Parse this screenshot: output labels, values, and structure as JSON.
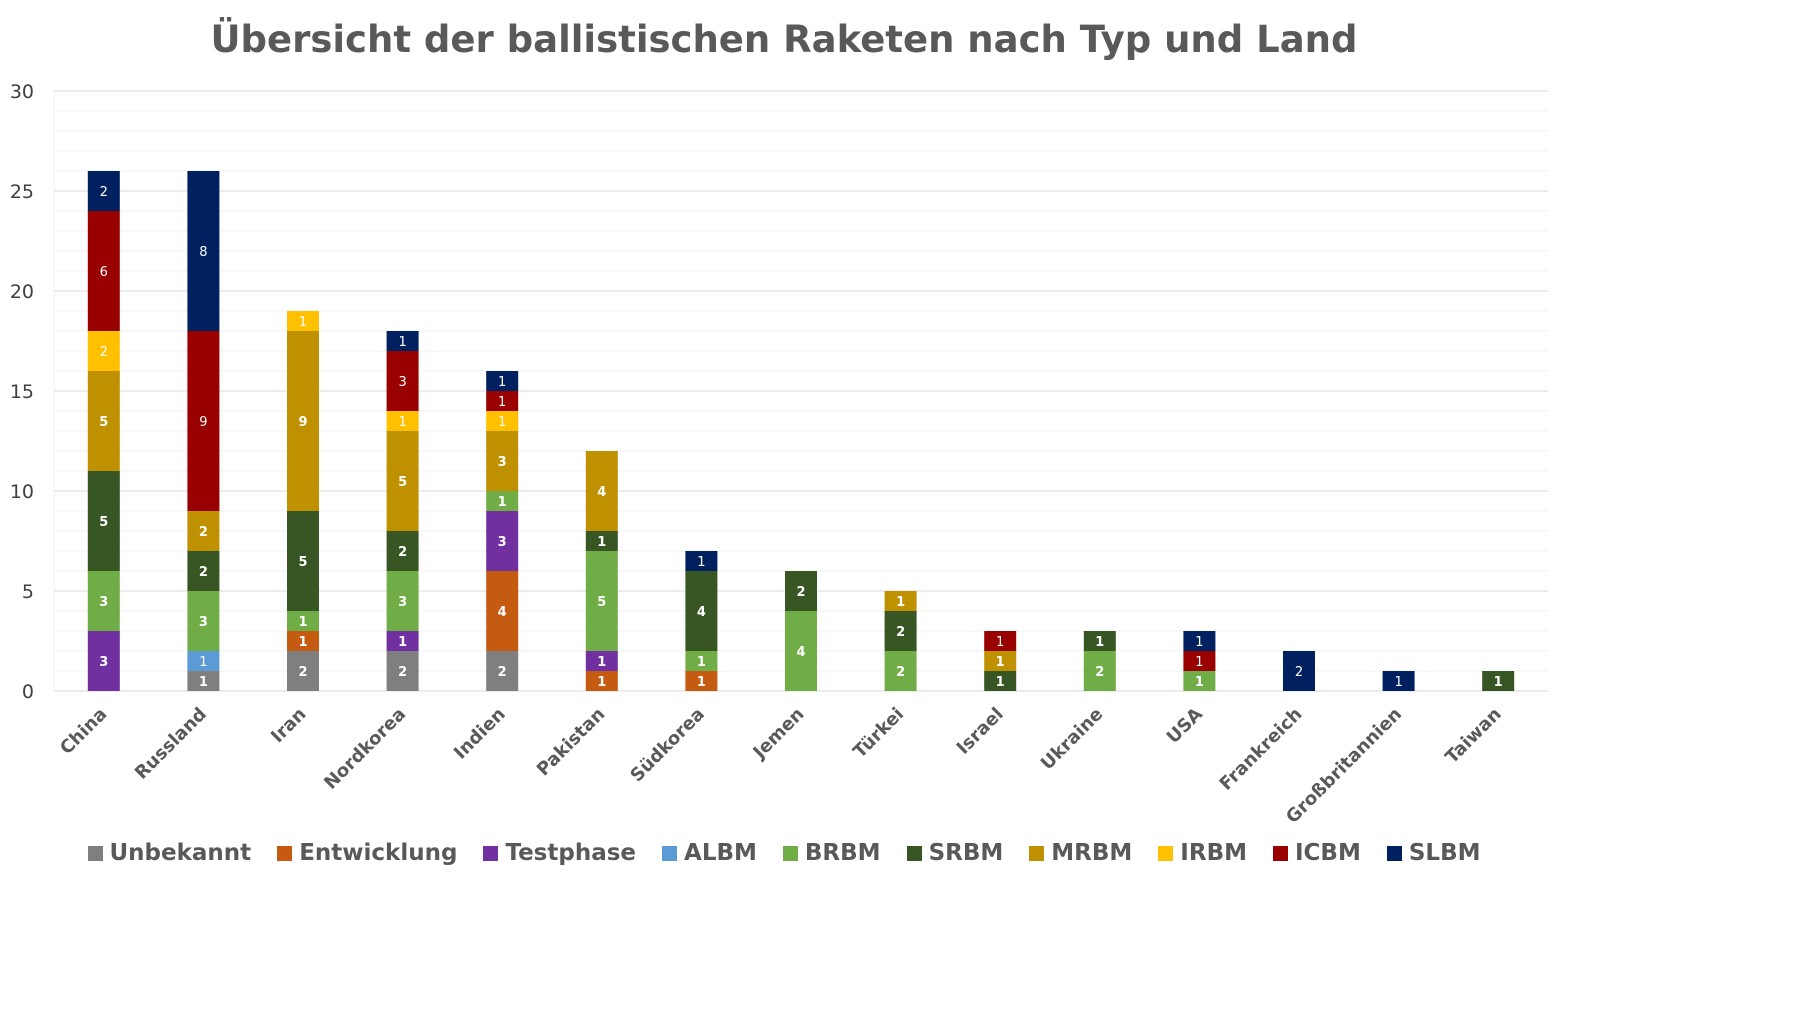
{
  "chart_data": {
    "type": "bar",
    "stacked": true,
    "title": "Übersicht der ballistischen Raketen nach Typ und Land",
    "xlabel": "",
    "ylabel": "",
    "ylim": [
      0,
      30
    ],
    "yticks": [
      "0",
      "5",
      "10",
      "15",
      "20",
      "25",
      "30"
    ],
    "grid": true,
    "legend_position": "bottom",
    "categories": [
      "China",
      "Russland",
      "Iran",
      "Nordkorea",
      "Indien",
      "Pakistan",
      "Südkorea",
      "Jemen",
      "Türkei",
      "Israel",
      "Ukraine",
      "USA",
      "Frankreich",
      "Großbritannien",
      "Taiwan"
    ],
    "series": [
      {
        "name": "Unbekannt",
        "color": "#7f7f7f",
        "values": [
          0,
          1,
          2,
          2,
          2,
          0,
          0,
          0,
          0,
          0,
          0,
          0,
          0,
          0,
          0
        ]
      },
      {
        "name": "Entwicklung",
        "color": "#c55a11",
        "values": [
          0,
          0,
          1,
          0,
          4,
          1,
          1,
          0,
          0,
          0,
          0,
          0,
          0,
          0,
          0
        ]
      },
      {
        "name": "Testphase",
        "color": "#7030a0",
        "values": [
          3,
          0,
          0,
          1,
          3,
          1,
          0,
          0,
          0,
          0,
          0,
          0,
          0,
          0,
          0
        ]
      },
      {
        "name": "ALBM",
        "color": "#5b9bd5",
        "values": [
          0,
          1,
          0,
          0,
          0,
          0,
          0,
          0,
          0,
          0,
          0,
          0,
          0,
          0,
          0
        ]
      },
      {
        "name": "BRBM",
        "color": "#70ad47",
        "values": [
          3,
          3,
          1,
          3,
          1,
          5,
          1,
          4,
          2,
          0,
          2,
          1,
          0,
          0,
          0
        ]
      },
      {
        "name": "SRBM",
        "color": "#375623",
        "values": [
          5,
          2,
          5,
          2,
          0,
          1,
          4,
          2,
          2,
          1,
          1,
          0,
          0,
          0,
          1
        ]
      },
      {
        "name": "MRBM",
        "color": "#bf9000",
        "values": [
          5,
          2,
          9,
          5,
          3,
          4,
          0,
          0,
          1,
          1,
          0,
          0,
          0,
          0,
          0
        ]
      },
      {
        "name": "IRBM",
        "color": "#ffc000",
        "values": [
          2,
          0,
          1,
          1,
          1,
          0,
          0,
          0,
          0,
          0,
          0,
          0,
          0,
          0,
          0
        ]
      },
      {
        "name": "ICBM",
        "color": "#990000",
        "values": [
          6,
          9,
          0,
          3,
          1,
          0,
          0,
          0,
          0,
          1,
          0,
          1,
          0,
          0,
          0
        ]
      },
      {
        "name": "SLBM",
        "color": "#002060",
        "values": [
          2,
          8,
          0,
          1,
          1,
          0,
          1,
          0,
          0,
          0,
          0,
          1,
          2,
          1,
          0
        ]
      }
    ]
  }
}
